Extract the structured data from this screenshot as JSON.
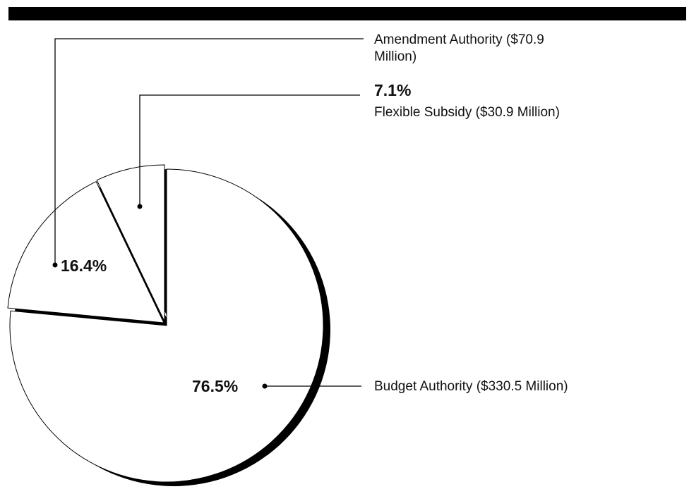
{
  "chart_data": {
    "type": "pie",
    "categories": [
      "Budget Authority ($330.5 Million)",
      "Amendment Authority ($70.9 Million)",
      "Flexible Subsidy ($30.9 Million)"
    ],
    "values": [
      76.5,
      16.4,
      7.1
    ],
    "value_labels": [
      "76.5%",
      "16.4%",
      "7.1%"
    ],
    "color": "#ffffff",
    "shadow_color": "#000000"
  }
}
